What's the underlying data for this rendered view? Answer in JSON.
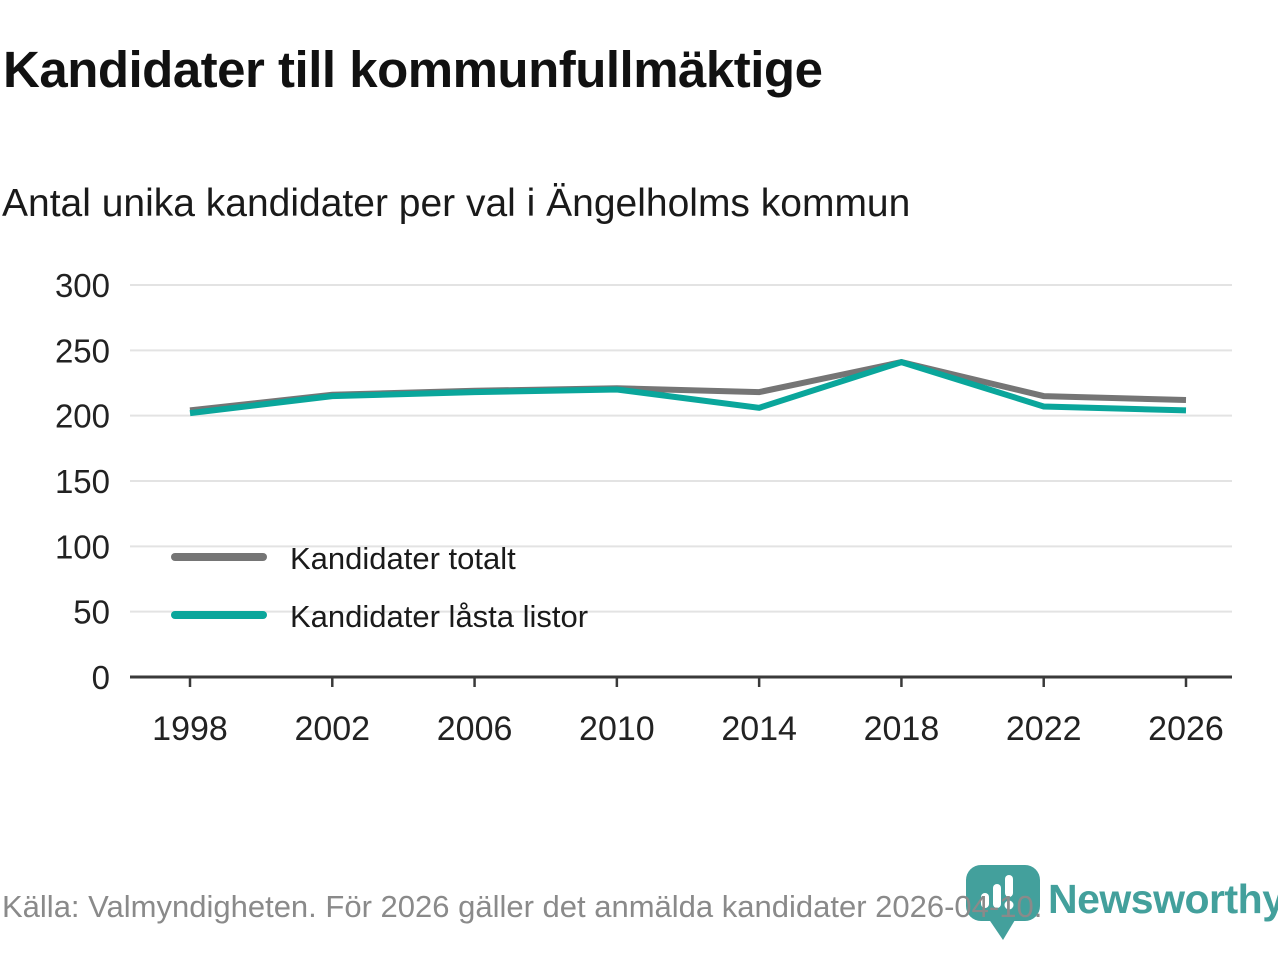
{
  "header": {
    "title": "Kandidater till kommunfullmäktige",
    "subtitle": "Antal unika kandidater per val i Ängelholms kommun"
  },
  "chart_data": {
    "type": "line",
    "title": "Kandidater till kommunfullmäktige",
    "subtitle": "Antal unika kandidater per val i Ängelholms kommun",
    "categories": [
      "1998",
      "2002",
      "2006",
      "2010",
      "2014",
      "2018",
      "2022",
      "2026"
    ],
    "series": [
      {
        "name": "Kandidater totalt",
        "values": [
          204,
          216,
          219,
          221,
          218,
          241,
          215,
          212
        ],
        "color": "#757575"
      },
      {
        "name": "Kandidater låsta listor",
        "values": [
          202,
          215,
          218,
          220,
          206,
          241,
          207,
          204
        ],
        "color": "#0aa69b"
      }
    ],
    "xlabel": "",
    "ylabel": "",
    "ylim": [
      0,
      300
    ],
    "yticks": [
      0,
      50,
      100,
      150,
      200,
      250,
      300
    ],
    "grid": "horizontal",
    "legend_position": "inside-left-middle"
  },
  "footer": {
    "source_text": "Källa: Valmyndigheten. För 2026 gäller det anmälda kandidater 2026-04-10.",
    "brand": "Newsworthy"
  },
  "colors": {
    "total_line": "#757575",
    "locked_line": "#0aa69b",
    "logo_teal": "#43a09c",
    "grid": "#e3e3e3",
    "axis": "#3a3a3a",
    "footer_text": "#8a8a8a"
  }
}
